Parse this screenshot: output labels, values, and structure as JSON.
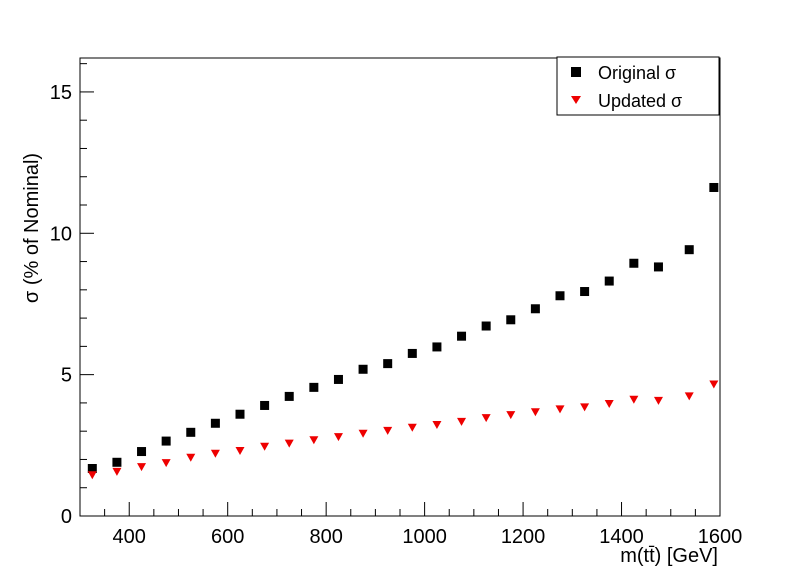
{
  "chart_data": {
    "type": "scatter",
    "xlabel": "m(tt̄) [GeV]",
    "ylabel": "σ (% of Nominal)",
    "xlim": [
      300,
      1600
    ],
    "ylim": [
      0,
      16.2
    ],
    "x_ticks": [
      "400",
      "600",
      "800",
      "1000",
      "1200",
      "1400",
      "1600"
    ],
    "y_ticks": [
      "0",
      "5",
      "10",
      "15"
    ],
    "legend_position": "top-right",
    "x": [
      325,
      375,
      425,
      475,
      525,
      575,
      625,
      675,
      725,
      775,
      825,
      875,
      925,
      975,
      1025,
      1075,
      1125,
      1175,
      1225,
      1275,
      1325,
      1375,
      1425,
      1475,
      1537.5,
      1587.5
    ],
    "series": [
      {
        "name": "Original σ",
        "marker": "square",
        "color": "#000000",
        "values": [
          1.68,
          1.9,
          2.28,
          2.65,
          2.96,
          3.28,
          3.6,
          3.91,
          4.23,
          4.55,
          4.83,
          5.19,
          5.39,
          5.75,
          5.98,
          6.36,
          6.72,
          6.94,
          7.33,
          7.79,
          7.94,
          8.31,
          8.94,
          8.81,
          9.42,
          11.62
        ]
      },
      {
        "name": "Updated σ",
        "marker": "triangle-down",
        "color": "#ee0000",
        "values": [
          1.44,
          1.56,
          1.73,
          1.87,
          2.06,
          2.2,
          2.3,
          2.45,
          2.56,
          2.68,
          2.79,
          2.91,
          3.01,
          3.12,
          3.22,
          3.33,
          3.46,
          3.57,
          3.67,
          3.77,
          3.84,
          3.96,
          4.11,
          4.07,
          4.23,
          4.65
        ]
      }
    ]
  }
}
